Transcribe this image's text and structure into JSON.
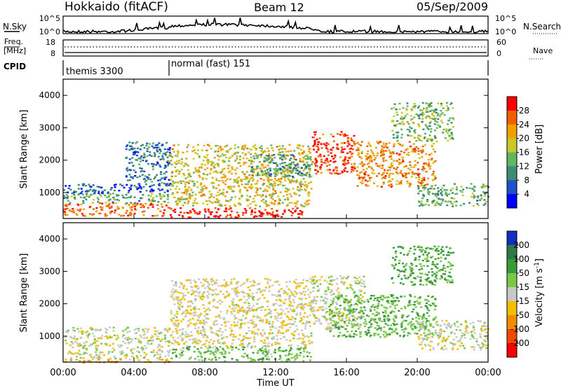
{
  "header": {
    "station": "Hokkaido (fitACF)",
    "beam": "Beam 12",
    "date": "05/Sep/2009"
  },
  "noise_panel": {
    "left_label": "N.Sky",
    "right_label": "N.Search",
    "left_ticks": [
      "10^5",
      "10^0"
    ],
    "right_ticks": [
      "10^5",
      "10^0"
    ]
  },
  "freq_panel": {
    "left_label_1": "Freq.",
    "left_label_2": "[MHz]",
    "right_label": "Nave",
    "left_ticks": [
      "18",
      "8"
    ],
    "right_ticks": [
      "60",
      "0"
    ]
  },
  "cpid_panel": {
    "label": "CPID",
    "modes": [
      {
        "name": "themis 3300",
        "start_hour": 0,
        "end_hour": 6
      },
      {
        "name": "normal (fast) 151",
        "start_hour": 6,
        "end_hour": 24
      }
    ]
  },
  "chart_data": [
    {
      "type": "heatmap",
      "title": "",
      "xlabel": "",
      "ylabel": "Slant Range [km]",
      "x_ticks": [
        "00:00",
        "04:00",
        "08:00",
        "12:00",
        "16:00",
        "20:00",
        "00:00"
      ],
      "xlim": [
        0,
        24
      ],
      "ylim": [
        200,
        4500
      ],
      "y_ticks": [
        "1000",
        "2000",
        "3000",
        "4000"
      ],
      "colorbar": {
        "label": "Power [dB]",
        "ticks": [
          "4",
          "8",
          "12",
          "16",
          "20",
          "24",
          "28"
        ],
        "range": [
          0,
          30
        ],
        "colors": [
          "#0000ff",
          "#2050c8",
          "#3c8c78",
          "#64b464",
          "#c8c828",
          "#f0a000",
          "#f06000",
          "#ff0000"
        ]
      },
      "features": [
        {
          "start_hour": 0.0,
          "end_hour": 6.0,
          "range_km": [
            300,
            700
          ],
          "power_db": 24
        },
        {
          "start_hour": 0.0,
          "end_hour": 6.0,
          "range_km": [
            700,
            1000
          ],
          "power_db": 12
        },
        {
          "start_hour": 0.0,
          "end_hour": 6.0,
          "range_km": [
            1000,
            1300
          ],
          "power_db": 6
        },
        {
          "start_hour": 3.5,
          "end_hour": 6.0,
          "range_km": [
            1300,
            2600
          ],
          "power_db": 8
        },
        {
          "start_hour": 6.0,
          "end_hour": 13.5,
          "range_km": [
            250,
            550
          ],
          "power_db": 28
        },
        {
          "start_hour": 6.0,
          "end_hour": 14.0,
          "range_km": [
            600,
            2500
          ],
          "power_db": 18
        },
        {
          "start_hour": 10.5,
          "end_hour": 14.0,
          "range_km": [
            1500,
            2200
          ],
          "power_db": 10
        },
        {
          "start_hour": 14.0,
          "end_hour": 16.5,
          "range_km": [
            1600,
            2900
          ],
          "power_db": 26
        },
        {
          "start_hour": 16.5,
          "end_hour": 21.0,
          "range_km": [
            1200,
            2600
          ],
          "power_db": 22
        },
        {
          "start_hour": 18.5,
          "end_hour": 22.0,
          "range_km": [
            2600,
            3800
          ],
          "power_db": 14
        },
        {
          "start_hour": 20.0,
          "end_hour": 24.0,
          "range_km": [
            600,
            1300
          ],
          "power_db": 12
        }
      ]
    },
    {
      "type": "heatmap",
      "title": "",
      "xlabel": "Time UT",
      "ylabel": "Slant Range [km]",
      "x_ticks": [
        "00:00",
        "04:00",
        "08:00",
        "12:00",
        "16:00",
        "20:00",
        "00:00"
      ],
      "xlim": [
        0,
        24
      ],
      "ylim": [
        200,
        4500
      ],
      "y_ticks": [
        "1000",
        "2000",
        "3000",
        "4000"
      ],
      "colorbar": {
        "label": "Velocity [m s^-1]",
        "ticks": [
          "200",
          "100",
          "50",
          "15",
          "-15",
          "-50",
          "-100",
          "-200"
        ],
        "range": [
          -250,
          250
        ],
        "colors": [
          "#1030c0",
          "#2d7a46",
          "#3a9a3a",
          "#7ac84a",
          "#c8c8c8",
          "#f0c000",
          "#f08c00",
          "#f04a00",
          "#ff0000"
        ]
      },
      "features": [
        {
          "start_hour": 0.0,
          "end_hour": 6.0,
          "range_km": [
            300,
            1300
          ],
          "velocity_ms": 0
        },
        {
          "start_hour": 0.0,
          "end_hour": 6.0,
          "range_km": [
            200,
            300
          ],
          "velocity_ms": -60
        },
        {
          "start_hour": 6.0,
          "end_hour": 14.0,
          "range_km": [
            250,
            700
          ],
          "velocity_ms": 40
        },
        {
          "start_hour": 6.0,
          "end_hour": 14.0,
          "range_km": [
            700,
            2800
          ],
          "velocity_ms": -10
        },
        {
          "start_hour": 14.0,
          "end_hour": 17.0,
          "range_km": [
            1200,
            2900
          ],
          "velocity_ms": 0
        },
        {
          "start_hour": 15.0,
          "end_hour": 21.0,
          "range_km": [
            1000,
            2300
          ],
          "velocity_ms": 45
        },
        {
          "start_hour": 18.5,
          "end_hour": 22.0,
          "range_km": [
            2600,
            3800
          ],
          "velocity_ms": 60
        },
        {
          "start_hour": 20.0,
          "end_hour": 24.0,
          "range_km": [
            600,
            1500
          ],
          "velocity_ms": 0
        }
      ]
    }
  ]
}
